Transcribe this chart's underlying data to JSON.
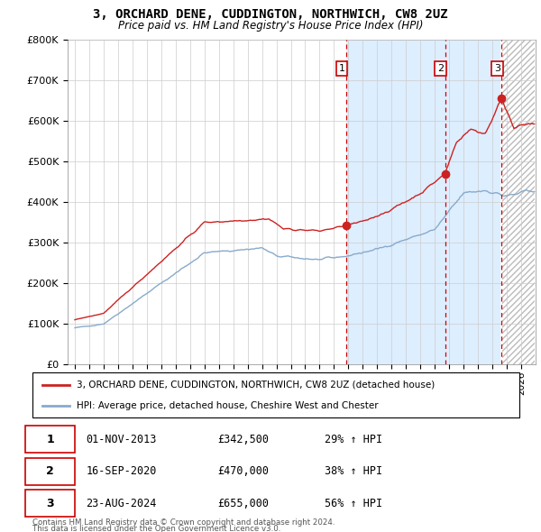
{
  "title": "3, ORCHARD DENE, CUDDINGTON, NORTHWICH, CW8 2UZ",
  "subtitle": "Price paid vs. HM Land Registry's House Price Index (HPI)",
  "ylim": [
    0,
    800000
  ],
  "yticks": [
    0,
    100000,
    200000,
    300000,
    400000,
    500000,
    600000,
    700000,
    800000
  ],
  "ytick_labels": [
    "£0",
    "£100K",
    "£200K",
    "£300K",
    "£400K",
    "£500K",
    "£600K",
    "£700K",
    "£800K"
  ],
  "xlim_start": 1994.5,
  "xlim_end": 2027.0,
  "sale_dates": [
    2013.833,
    2020.708,
    2024.639
  ],
  "sale_prices": [
    342500,
    470000,
    655000
  ],
  "sale_labels": [
    "1",
    "2",
    "3"
  ],
  "vline_color": "#cc0000",
  "red_line_color": "#cc2222",
  "blue_line_color": "#88aacc",
  "shaded_region_color": "#ddeeff",
  "legend_red_label": "3, ORCHARD DENE, CUDDINGTON, NORTHWICH, CW8 2UZ (detached house)",
  "legend_blue_label": "HPI: Average price, detached house, Cheshire West and Chester",
  "table_rows": [
    {
      "num": "1",
      "date": "01-NOV-2013",
      "price": "£342,500",
      "hpi": "29% ↑ HPI"
    },
    {
      "num": "2",
      "date": "16-SEP-2020",
      "price": "£470,000",
      "hpi": "38% ↑ HPI"
    },
    {
      "num": "3",
      "date": "23-AUG-2024",
      "price": "£655,000",
      "hpi": "56% ↑ HPI"
    }
  ],
  "footer1": "Contains HM Land Registry data © Crown copyright and database right 2024.",
  "footer2": "This data is licensed under the Open Government Licence v3.0.",
  "grid_color": "#cccccc"
}
